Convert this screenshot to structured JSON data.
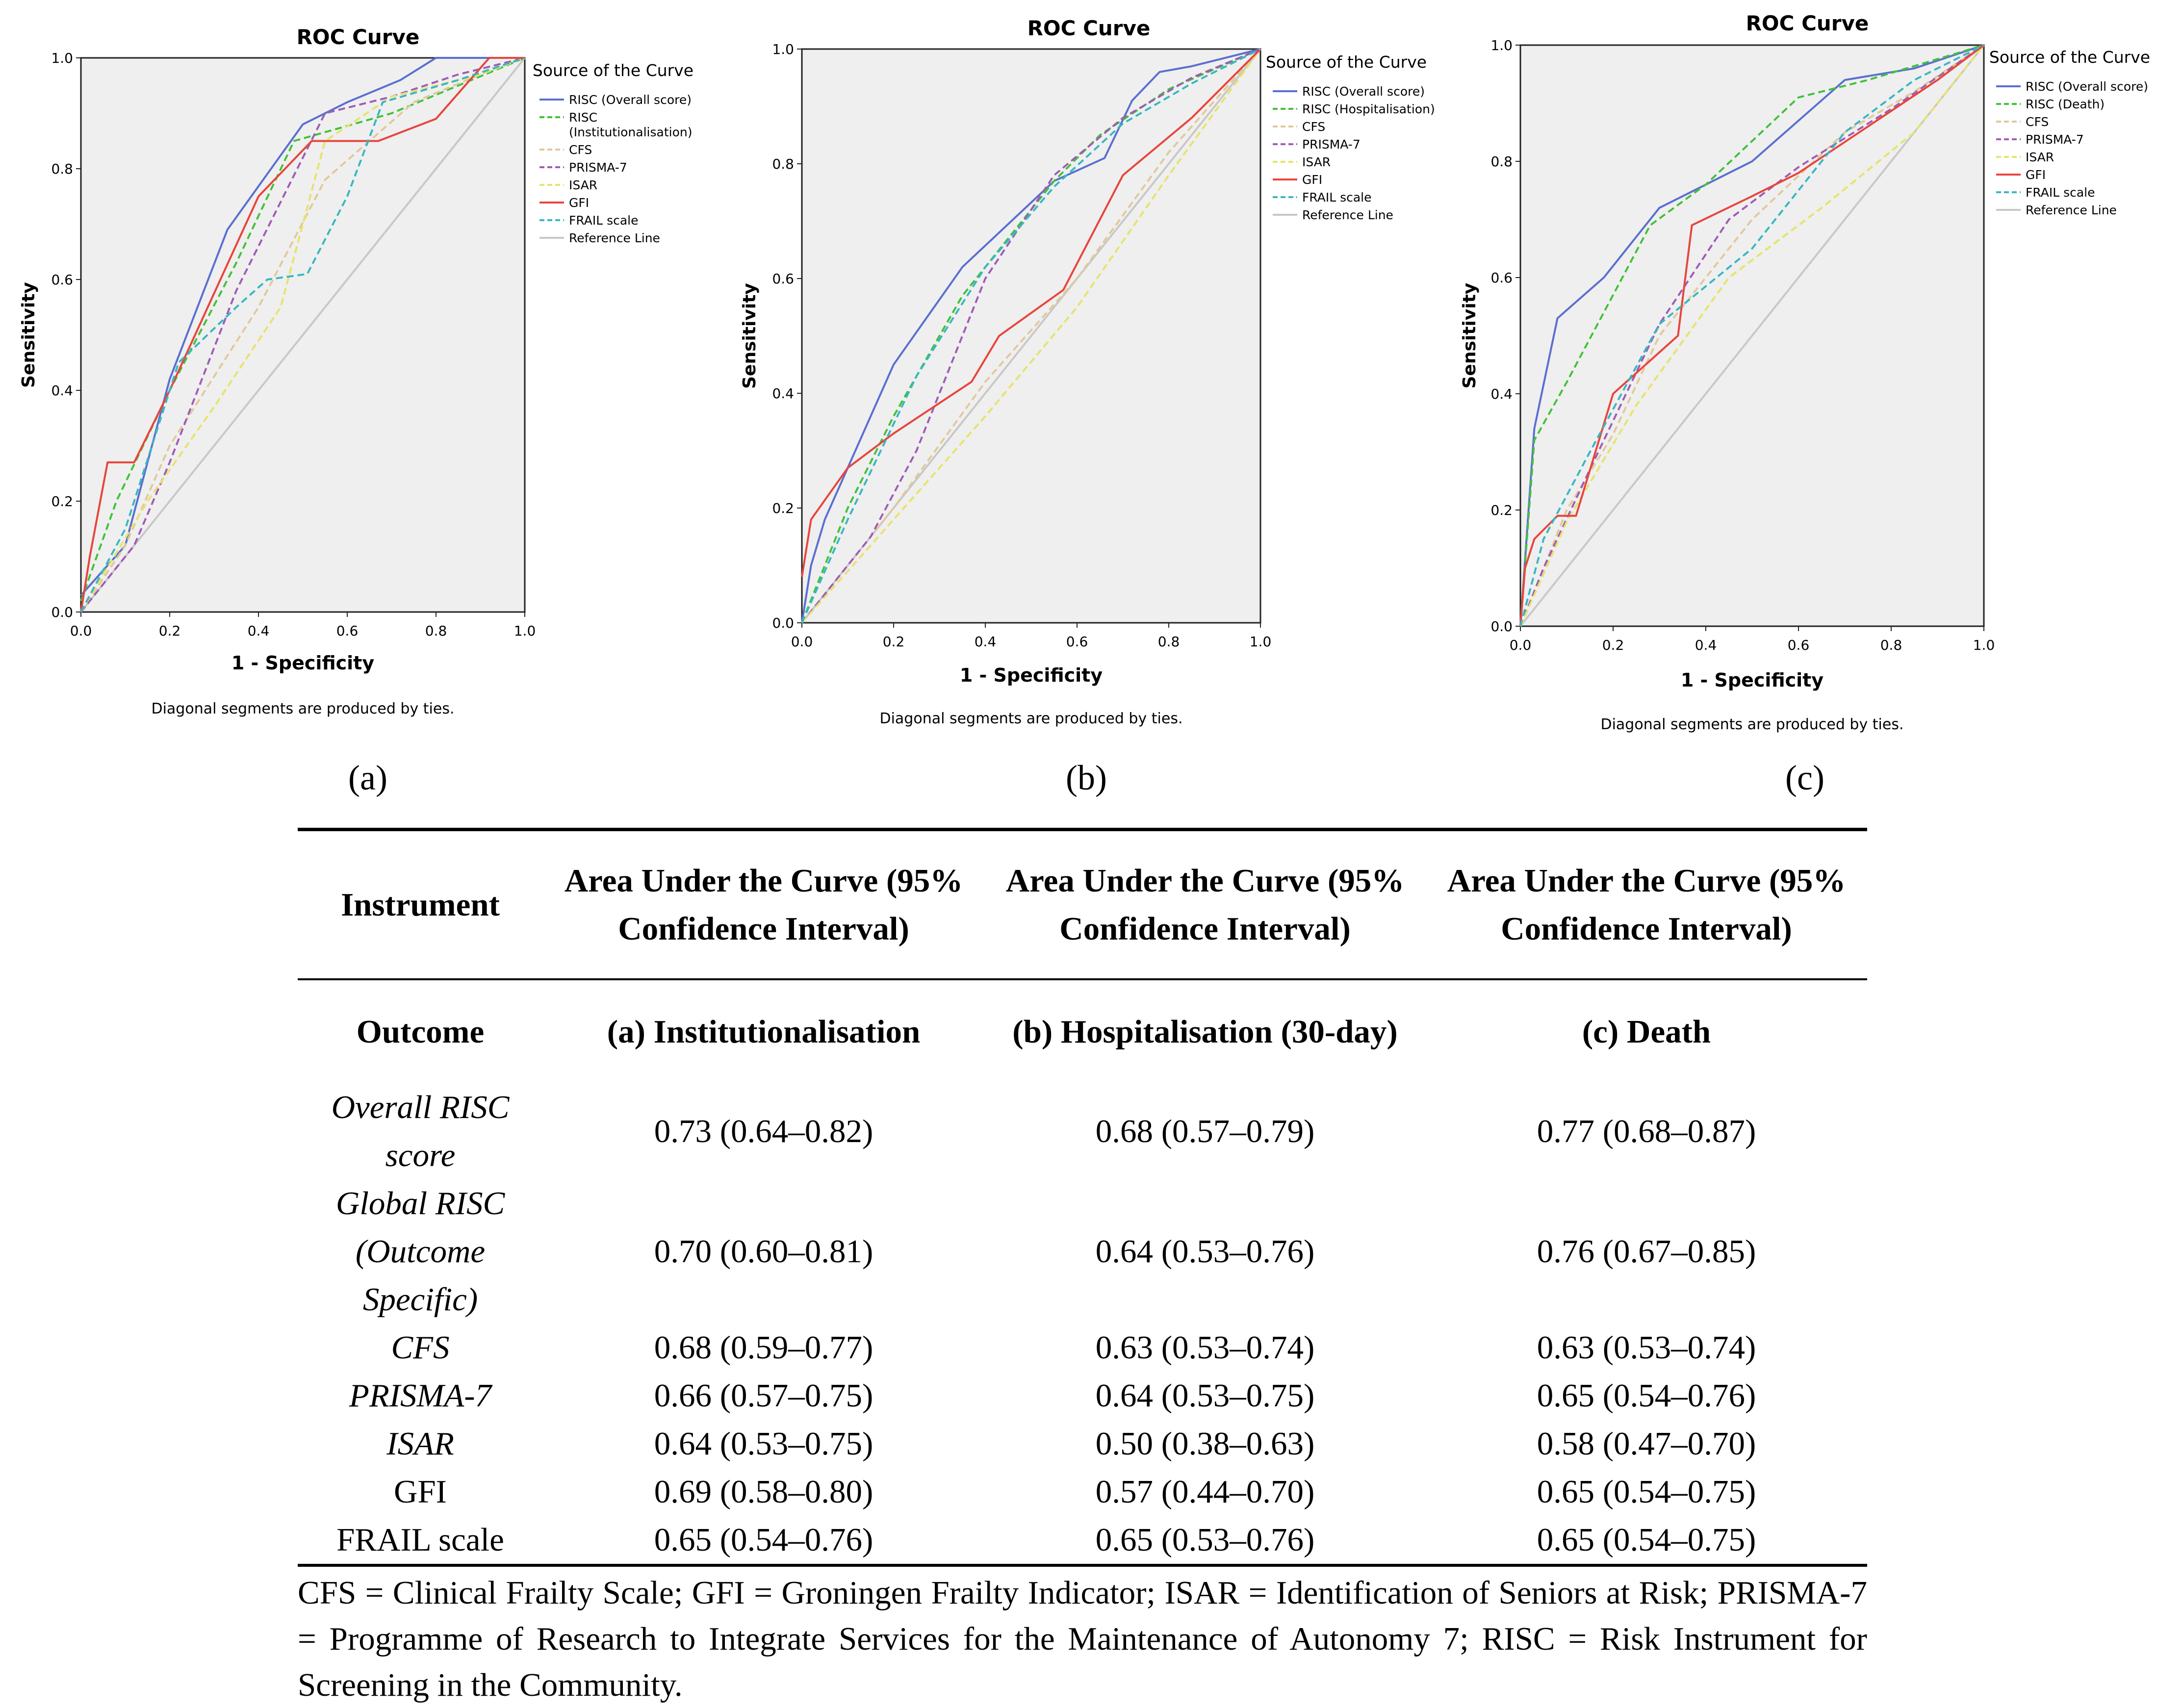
{
  "common": {
    "footnote_chart": "Diagonal segments are produced by ties.",
    "legend_title": "Source of the Curve",
    "x_axis_label": "1 - Specificity",
    "y_axis_label": "Sensitivity",
    "ticks": [
      "0.0",
      "0.2",
      "0.4",
      "0.6",
      "0.8",
      "1.0"
    ]
  },
  "chart_data": [
    {
      "type": "line",
      "panel": "(a)",
      "title": "ROC Curve",
      "xlabel": "1 - Specificity",
      "ylabel": "Sensitivity",
      "xlim": [
        0,
        1
      ],
      "ylim": [
        0,
        1
      ],
      "grid": false,
      "legend_title": "Source of the Curve",
      "legend_position": "right",
      "note": "Diagonal segments are produced by ties.",
      "series": [
        {
          "name": "RISC (Overall score)",
          "color": "#5a6fd1",
          "dash": "solid",
          "x": [
            0,
            0.1,
            0.2,
            0.33,
            0.5,
            0.6,
            0.72,
            0.8,
            1.0
          ],
          "y": [
            0.03,
            0.12,
            0.42,
            0.69,
            0.88,
            0.92,
            0.96,
            1.0,
            1.0
          ]
        },
        {
          "name": "RISC (Institutionalisation)",
          "color": "#42c13a",
          "dash": "dash",
          "x": [
            0,
            0.08,
            0.2,
            0.35,
            0.48,
            0.7,
            0.85,
            1.0
          ],
          "y": [
            0.02,
            0.2,
            0.4,
            0.63,
            0.85,
            0.9,
            0.95,
            1.0
          ]
        },
        {
          "name": "CFS",
          "color": "#e2c89a",
          "dash": "dash",
          "x": [
            0,
            0.1,
            0.2,
            0.4,
            0.55,
            0.75,
            0.9,
            1.0
          ],
          "y": [
            0,
            0.12,
            0.3,
            0.55,
            0.78,
            0.92,
            0.97,
            1.0
          ]
        },
        {
          "name": "PRISMA-7",
          "color": "#a05cb6",
          "dash": "dash",
          "x": [
            0,
            0.12,
            0.2,
            0.35,
            0.55,
            0.7,
            0.85,
            1.0
          ],
          "y": [
            0,
            0.12,
            0.27,
            0.58,
            0.9,
            0.93,
            0.97,
            1.0
          ]
        },
        {
          "name": "ISAR",
          "color": "#e6e36a",
          "dash": "dash",
          "x": [
            0,
            0.15,
            0.3,
            0.45,
            0.55,
            0.7,
            0.9,
            1.0
          ],
          "y": [
            0,
            0.2,
            0.37,
            0.55,
            0.85,
            0.93,
            0.97,
            1.0
          ]
        },
        {
          "name": "GFI",
          "color": "#e8453c",
          "dash": "solid",
          "x": [
            0,
            0.02,
            0.06,
            0.12,
            0.2,
            0.4,
            0.52,
            0.67,
            0.8,
            0.92,
            1.0
          ],
          "y": [
            0,
            0.1,
            0.27,
            0.27,
            0.4,
            0.75,
            0.85,
            0.85,
            0.89,
            1.0,
            1.0
          ]
        },
        {
          "name": "FRAIL scale",
          "color": "#38b7c2",
          "dash": "dash",
          "x": [
            0,
            0.1,
            0.22,
            0.35,
            0.42,
            0.51,
            0.6,
            0.68,
            0.85,
            1.0
          ],
          "y": [
            0,
            0.15,
            0.45,
            0.55,
            0.6,
            0.61,
            0.75,
            0.92,
            0.96,
            1.0
          ]
        },
        {
          "name": "Reference Line",
          "color": "#c8c8c8",
          "dash": "solid",
          "x": [
            0,
            1
          ],
          "y": [
            0,
            1
          ]
        }
      ]
    },
    {
      "type": "line",
      "panel": "(b)",
      "title": "ROC Curve",
      "xlabel": "1 - Specificity",
      "ylabel": "Sensitivity",
      "xlim": [
        0,
        1
      ],
      "ylim": [
        0,
        1
      ],
      "grid": false,
      "legend_title": "Source of the Curve",
      "legend_position": "right",
      "note": "Diagonal segments are produced by ties.",
      "series": [
        {
          "name": "RISC (Overall score)",
          "color": "#5a6fd1",
          "dash": "solid",
          "x": [
            0,
            0.02,
            0.05,
            0.2,
            0.35,
            0.55,
            0.66,
            0.72,
            0.78,
            0.85,
            1.0
          ],
          "y": [
            0,
            0.1,
            0.18,
            0.45,
            0.62,
            0.77,
            0.81,
            0.91,
            0.96,
            0.97,
            1.0
          ]
        },
        {
          "name": "RISC (Hospitalisation)",
          "color": "#42c13a",
          "dash": "dash",
          "x": [
            0,
            0.1,
            0.2,
            0.35,
            0.55,
            0.65,
            0.8,
            1.0
          ],
          "y": [
            0,
            0.2,
            0.36,
            0.57,
            0.77,
            0.85,
            0.93,
            1.0
          ]
        },
        {
          "name": "CFS",
          "color": "#e2c89a",
          "dash": "dash",
          "x": [
            0,
            0.2,
            0.4,
            0.6,
            0.8,
            1.0
          ],
          "y": [
            0,
            0.2,
            0.42,
            0.6,
            0.82,
            1.0
          ]
        },
        {
          "name": "PRISMA-7",
          "color": "#a05cb6",
          "dash": "dash",
          "x": [
            0,
            0.15,
            0.25,
            0.4,
            0.55,
            0.7,
            0.85,
            1.0
          ],
          "y": [
            0,
            0.15,
            0.3,
            0.6,
            0.78,
            0.88,
            0.95,
            1.0
          ]
        },
        {
          "name": "ISAR",
          "color": "#e6e36a",
          "dash": "dash",
          "x": [
            0,
            0.2,
            0.4,
            0.6,
            0.8,
            1.0
          ],
          "y": [
            0,
            0.18,
            0.36,
            0.55,
            0.78,
            1.0
          ]
        },
        {
          "name": "GFI",
          "color": "#e8453c",
          "dash": "solid",
          "x": [
            0,
            0.02,
            0.1,
            0.2,
            0.37,
            0.43,
            0.57,
            0.7,
            0.85,
            1.0
          ],
          "y": [
            0.08,
            0.18,
            0.27,
            0.33,
            0.42,
            0.5,
            0.58,
            0.78,
            0.88,
            1.0
          ]
        },
        {
          "name": "FRAIL scale",
          "color": "#38b7c2",
          "dash": "dash",
          "x": [
            0,
            0.1,
            0.25,
            0.4,
            0.55,
            0.7,
            0.85,
            1.0
          ],
          "y": [
            0,
            0.18,
            0.43,
            0.62,
            0.76,
            0.87,
            0.94,
            1.0
          ]
        },
        {
          "name": "Reference Line",
          "color": "#c8c8c8",
          "dash": "solid",
          "x": [
            0,
            1
          ],
          "y": [
            0,
            1
          ]
        }
      ]
    },
    {
      "type": "line",
      "panel": "(c)",
      "title": "ROC Curve",
      "xlabel": "1 - Specificity",
      "ylabel": "Sensitivity",
      "xlim": [
        0,
        1
      ],
      "ylim": [
        0,
        1
      ],
      "grid": false,
      "legend_title": "Source of the Curve",
      "legend_position": "right",
      "note": "Diagonal segments are produced by ties.",
      "series": [
        {
          "name": "RISC (Overall score)",
          "color": "#5a6fd1",
          "dash": "solid",
          "x": [
            0,
            0.03,
            0.08,
            0.18,
            0.3,
            0.5,
            0.7,
            0.85,
            1.0
          ],
          "y": [
            0,
            0.34,
            0.53,
            0.6,
            0.72,
            0.8,
            0.94,
            0.96,
            1.0
          ]
        },
        {
          "name": "RISC (Death)",
          "color": "#42c13a",
          "dash": "dash",
          "x": [
            0,
            0.03,
            0.1,
            0.28,
            0.4,
            0.6,
            0.75,
            1.0
          ],
          "y": [
            0,
            0.32,
            0.42,
            0.69,
            0.76,
            0.91,
            0.94,
            1.0
          ]
        },
        {
          "name": "CFS",
          "color": "#e2c89a",
          "dash": "dash",
          "x": [
            0,
            0.1,
            0.2,
            0.3,
            0.5,
            0.7,
            0.85,
            1.0
          ],
          "y": [
            0,
            0.2,
            0.33,
            0.5,
            0.7,
            0.85,
            0.92,
            1.0
          ]
        },
        {
          "name": "PRISMA-7",
          "color": "#a05cb6",
          "dash": "dash",
          "x": [
            0,
            0.05,
            0.15,
            0.3,
            0.45,
            0.6,
            0.8,
            1.0
          ],
          "y": [
            0,
            0.1,
            0.27,
            0.52,
            0.7,
            0.79,
            0.89,
            1.0
          ]
        },
        {
          "name": "ISAR",
          "color": "#e6e36a",
          "dash": "dash",
          "x": [
            0,
            0.1,
            0.25,
            0.45,
            0.65,
            0.85,
            1.0
          ],
          "y": [
            0,
            0.18,
            0.38,
            0.6,
            0.72,
            0.85,
            1.0
          ]
        },
        {
          "name": "GFI",
          "color": "#e8453c",
          "dash": "solid",
          "x": [
            0,
            0.01,
            0.03,
            0.08,
            0.12,
            0.2,
            0.34,
            0.37,
            0.5,
            0.6,
            0.75,
            0.9,
            1.0
          ],
          "y": [
            0,
            0.1,
            0.15,
            0.19,
            0.19,
            0.4,
            0.5,
            0.69,
            0.74,
            0.78,
            0.86,
            0.94,
            1.0
          ]
        },
        {
          "name": "FRAIL scale",
          "color": "#38b7c2",
          "dash": "dash",
          "x": [
            0,
            0.05,
            0.15,
            0.3,
            0.5,
            0.7,
            0.85,
            1.0
          ],
          "y": [
            0,
            0.15,
            0.3,
            0.52,
            0.65,
            0.85,
            0.94,
            1.0
          ]
        },
        {
          "name": "Reference Line",
          "color": "#c8c8c8",
          "dash": "solid",
          "x": [
            0,
            1
          ],
          "y": [
            0,
            1
          ]
        }
      ]
    }
  ],
  "table": {
    "header": {
      "instrument": "Instrument",
      "auc": "Area Under the Curve (95% Confidence Interval)"
    },
    "outcome_row": {
      "label": "Outcome",
      "a": "(a) Institutionalisation",
      "b": "(b) Hospitalisation (30-day)",
      "c": "(c) Death"
    },
    "rows": [
      {
        "name": "Overall RISC score",
        "a": "0.73 (0.64–0.82)",
        "b": "0.68 (0.57–0.79)",
        "c": "0.77 (0.68–0.87)"
      },
      {
        "name": "Global RISC (Outcome Specific)",
        "a": "0.70 (0.60–0.81)",
        "b": "0.64 (0.53–0.76)",
        "c": "0.76 (0.67–0.85)"
      },
      {
        "name": "CFS",
        "a": "0.68 (0.59–0.77)",
        "b": "0.63 (0.53–0.74)",
        "c": "0.63 (0.53–0.74)"
      },
      {
        "name": "PRISMA-7",
        "a": "0.66 (0.57–0.75)",
        "b": "0.64 (0.53–0.75)",
        "c": "0.65 (0.54–0.76)"
      },
      {
        "name": "ISAR",
        "a": "0.64 (0.53–0.75)",
        "b": "0.50 (0.38–0.63)",
        "c": "0.58 (0.47–0.70)"
      },
      {
        "name": "GFI",
        "a": "0.69 (0.58–0.80)",
        "b": "0.57 (0.44–0.70)",
        "c": "0.65 (0.54–0.75)"
      },
      {
        "name": "FRAIL scale",
        "a": "0.65 (0.54–0.76)",
        "b": "0.65 (0.53–0.76)",
        "c": "0.65 (0.54–0.75)"
      }
    ],
    "footnote": "CFS = Clinical Frailty Scale; GFI = Groningen Frailty Indicator; ISAR = Identification of Seniors at Risk; PRISMA-7 = Programme of Research to Integrate Services for the Maintenance of Autonomy 7; RISC = Risk Instrument for Screening in the Community."
  }
}
